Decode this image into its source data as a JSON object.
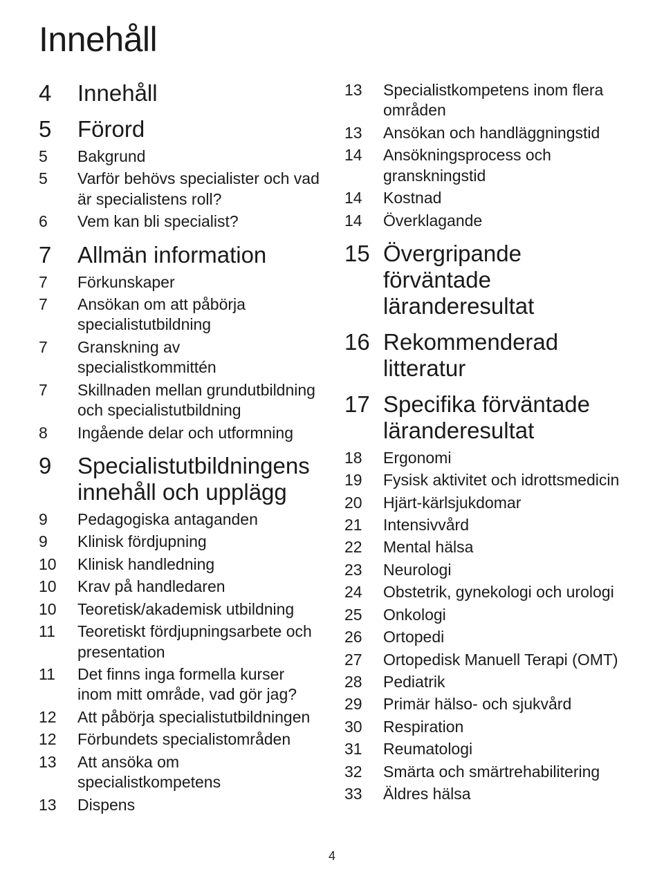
{
  "title": "Innehåll",
  "page_number": "4",
  "colors": {
    "background": "#ffffff",
    "text": "#1a1a1a"
  },
  "typography": {
    "title_fontsize": 50,
    "section_fontsize": 33,
    "sub_fontsize": 23,
    "font_family": "Gill Sans"
  },
  "column_left": [
    {
      "page": "4",
      "level": "section",
      "text": "Innehåll"
    },
    {
      "page": "5",
      "level": "section",
      "text": "Förord"
    },
    {
      "page": "5",
      "level": "sub",
      "text": "Bakgrund"
    },
    {
      "page": "5",
      "level": "sub",
      "text": "Varför behövs specialister och vad är specialistens roll?"
    },
    {
      "page": "6",
      "level": "sub",
      "text": "Vem kan bli specialist?"
    },
    {
      "page": "7",
      "level": "section",
      "text": "Allmän information"
    },
    {
      "page": "7",
      "level": "sub",
      "text": "Förkunskaper"
    },
    {
      "page": "7",
      "level": "sub",
      "text": "Ansökan om att påbörja specialistutbildning"
    },
    {
      "page": "7",
      "level": "sub",
      "text": "Granskning av specialistkommittén"
    },
    {
      "page": "7",
      "level": "sub",
      "text": "Skillnaden mellan grundutbildning och specialistutbildning"
    },
    {
      "page": "8",
      "level": "sub",
      "text": "Ingående delar och utformning"
    },
    {
      "page": "9",
      "level": "section",
      "text": "Specialistutbildningens innehåll och upplägg"
    },
    {
      "page": "9",
      "level": "sub",
      "text": "Pedagogiska antaganden"
    },
    {
      "page": "9",
      "level": "sub",
      "text": "Klinisk fördjupning"
    },
    {
      "page": "10",
      "level": "sub",
      "text": "Klinisk handledning"
    },
    {
      "page": "10",
      "level": "sub",
      "text": "Krav på handledaren"
    },
    {
      "page": "10",
      "level": "sub",
      "text": "Teoretisk/akademisk utbildning"
    },
    {
      "page": "11",
      "level": "sub",
      "text": "Teoretiskt fördjupningsarbete och presentation"
    },
    {
      "page": "11",
      "level": "sub",
      "text": "Det finns inga formella kurser inom mitt område, vad gör jag?"
    },
    {
      "page": "12",
      "level": "sub",
      "text": "Att påbörja specialistutbildningen"
    },
    {
      "page": "12",
      "level": "sub",
      "text": "Förbundets specialistområden"
    },
    {
      "page": "13",
      "level": "sub",
      "text": "Att ansöka om specialistkompetens"
    },
    {
      "page": "13",
      "level": "sub",
      "text": "Dispens"
    }
  ],
  "column_right": [
    {
      "page": "13",
      "level": "sub",
      "text": "Specialistkompetens inom flera områden"
    },
    {
      "page": "13",
      "level": "sub",
      "text": "Ansökan och handläggningstid"
    },
    {
      "page": "14",
      "level": "sub",
      "text": "Ansökningsprocess och granskningstid"
    },
    {
      "page": "14",
      "level": "sub",
      "text": "Kostnad"
    },
    {
      "page": "14",
      "level": "sub",
      "text": "Överklagande"
    },
    {
      "page": "15",
      "level": "section",
      "text": "Övergripande förväntade läranderesultat"
    },
    {
      "page": "16",
      "level": "section",
      "text": "Rekommenderad litteratur"
    },
    {
      "page": "17",
      "level": "section",
      "text": "Specifika förväntade läranderesultat"
    },
    {
      "page": "18",
      "level": "sub",
      "text": "Ergonomi"
    },
    {
      "page": "19",
      "level": "sub",
      "text": "Fysisk aktivitet och idrottsmedicin"
    },
    {
      "page": "20",
      "level": "sub",
      "text": "Hjärt-kärlsjukdomar"
    },
    {
      "page": "21",
      "level": "sub",
      "text": "Intensivvård"
    },
    {
      "page": "22",
      "level": "sub",
      "text": "Mental hälsa"
    },
    {
      "page": "23",
      "level": "sub",
      "text": "Neurologi"
    },
    {
      "page": "24",
      "level": "sub",
      "text": "Obstetrik, gynekologi och urologi"
    },
    {
      "page": "25",
      "level": "sub",
      "text": "Onkologi"
    },
    {
      "page": "26",
      "level": "sub",
      "text": "Ortopedi"
    },
    {
      "page": "27",
      "level": "sub",
      "text": "Ortopedisk Manuell Terapi (OMT)"
    },
    {
      "page": "28",
      "level": "sub",
      "text": "Pediatrik"
    },
    {
      "page": "29",
      "level": "sub",
      "text": "Primär hälso- och sjukvård"
    },
    {
      "page": "30",
      "level": "sub",
      "text": "Respiration"
    },
    {
      "page": "31",
      "level": "sub",
      "text": "Reumatologi"
    },
    {
      "page": "32",
      "level": "sub",
      "text": "Smärta och smärtrehabilitering"
    },
    {
      "page": "33",
      "level": "sub",
      "text": "Äldres hälsa"
    }
  ]
}
